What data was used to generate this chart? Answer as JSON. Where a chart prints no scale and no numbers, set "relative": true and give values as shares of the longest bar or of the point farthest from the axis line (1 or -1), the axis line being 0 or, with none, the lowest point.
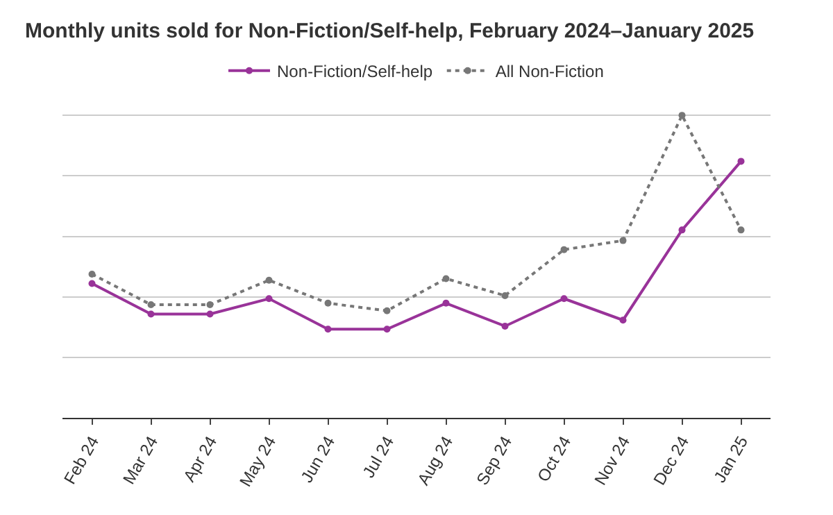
{
  "chart_data": {
    "type": "line",
    "title": "Monthly units sold for Non-Fiction/Self-help, February 2024–January 2025",
    "relative": true,
    "categories": [
      "Feb 24",
      "Mar 24",
      "Apr 24",
      "May 24",
      "Jun 24",
      "Jul 24",
      "Aug 24",
      "Sep 24",
      "Oct 24",
      "Nov 24",
      "Dec 24",
      "Jan 25"
    ],
    "series": [
      {
        "name": "Non-Fiction/Self-help",
        "color": "#993399",
        "line_style": "solid",
        "values": [
          0.444,
          0.343,
          0.343,
          0.394,
          0.293,
          0.293,
          0.379,
          0.303,
          0.394,
          0.323,
          0.621,
          0.848
        ]
      },
      {
        "name": "All Non-Fiction",
        "color": "#777777",
        "line_style": "dotted",
        "values": [
          0.475,
          0.374,
          0.374,
          0.455,
          0.379,
          0.354,
          0.46,
          0.404,
          0.556,
          0.586,
          1,
          0.621
        ]
      }
    ],
    "marker": "circle",
    "grid": "y",
    "legend": "top"
  }
}
